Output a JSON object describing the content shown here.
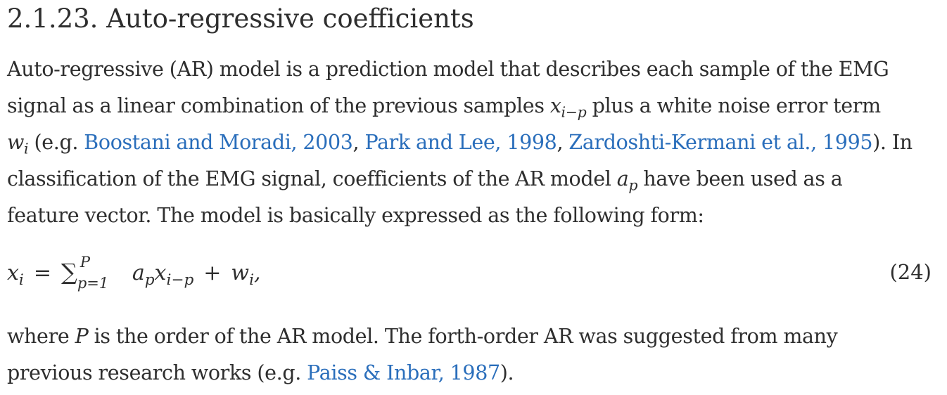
{
  "section": {
    "title": "2.1.23. Auto-regressive coefficients"
  },
  "paragraph1": {
    "l1": "Auto-regressive (AR) model is a prediction model that describes each sample of the EMG",
    "l2_pre": "signal as a linear combination of the previous samples ",
    "l2_var": "x",
    "l2_sub": "i−p",
    "l2_post": " plus a white noise error term",
    "l3_var": "w",
    "l3_sub": "i",
    "l3_pre": " (e.g. ",
    "citation1": "Boostani and Moradi, 2003",
    "sep1": ", ",
    "citation2": "Park and Lee, 1998",
    "sep2": ", ",
    "citation3": "Zardoshti-Kermani et al., 1995",
    "l3_post": "). In",
    "l4_pre": "classification of the EMG signal, coefficients of the AR model ",
    "l4_var": "a",
    "l4_sub": "p",
    "l4_post": " have been used as a",
    "l5": "feature vector. The model is basically expressed as the following form:"
  },
  "equation": {
    "lhs_var": "x",
    "lhs_sub": "i",
    "equals": "=",
    "sum_symbol": "∑",
    "upper_limit": "P",
    "lower_limit": "p=1",
    "coef_var": "a",
    "coef_sub": "p",
    "term_var": "x",
    "term_sub": "i−p",
    "plus": "+",
    "noise_var": "w",
    "noise_sub": "i",
    "trail": ",",
    "number": "(24)"
  },
  "paragraph2": {
    "l1_pre": "where ",
    "l1_var": "P",
    "l1_post": " is the order of the AR model. The forth-order AR was suggested from many",
    "l2_pre": "previous research works (e.g. ",
    "citation": "Paiss & Inbar, 1987",
    "l2_post": ")."
  },
  "colors": {
    "text": "#2e2e2e",
    "link": "#2a6ebb",
    "background": "#ffffff"
  }
}
